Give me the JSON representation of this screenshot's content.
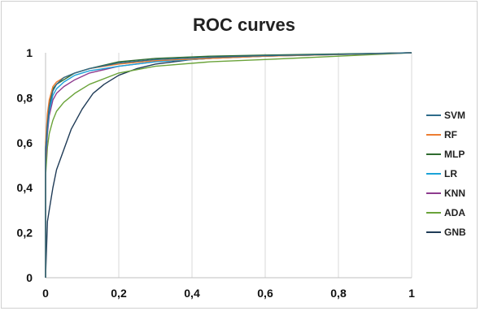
{
  "chart_data": {
    "type": "line",
    "title": "ROC curves",
    "xlabel": "",
    "ylabel": "",
    "xlim": [
      0,
      1
    ],
    "ylim": [
      0,
      1
    ],
    "x_ticks": [
      "0",
      "0,2",
      "0,4",
      "0,6",
      "0,8",
      "1"
    ],
    "y_ticks": [
      "0",
      "0,2",
      "0,4",
      "0,6",
      "0,8",
      "1"
    ],
    "grid": "vertical",
    "legend_position": "right",
    "series": [
      {
        "name": "SVM",
        "color": "#2e6b8a",
        "points": [
          [
            0,
            0
          ],
          [
            0,
            0.57
          ],
          [
            0.005,
            0.68
          ],
          [
            0.01,
            0.76
          ],
          [
            0.02,
            0.83
          ],
          [
            0.03,
            0.86
          ],
          [
            0.05,
            0.89
          ],
          [
            0.08,
            0.91
          ],
          [
            0.12,
            0.93
          ],
          [
            0.2,
            0.955
          ],
          [
            0.3,
            0.97
          ],
          [
            0.45,
            0.98
          ],
          [
            0.6,
            0.987
          ],
          [
            0.8,
            0.993
          ],
          [
            1,
            1
          ]
        ]
      },
      {
        "name": "RF",
        "color": "#ed7d31",
        "points": [
          [
            0,
            0
          ],
          [
            0,
            0.6
          ],
          [
            0.005,
            0.73
          ],
          [
            0.01,
            0.79
          ],
          [
            0.02,
            0.85
          ],
          [
            0.03,
            0.87
          ],
          [
            0.05,
            0.89
          ],
          [
            0.08,
            0.91
          ],
          [
            0.12,
            0.93
          ],
          [
            0.2,
            0.95
          ],
          [
            0.3,
            0.965
          ],
          [
            0.45,
            0.975
          ],
          [
            0.6,
            0.985
          ],
          [
            0.8,
            0.992
          ],
          [
            1,
            1
          ]
        ]
      },
      {
        "name": "MLP",
        "color": "#2f6b2f",
        "points": [
          [
            0,
            0
          ],
          [
            0,
            0.58
          ],
          [
            0.005,
            0.7
          ],
          [
            0.01,
            0.78
          ],
          [
            0.02,
            0.84
          ],
          [
            0.03,
            0.86
          ],
          [
            0.05,
            0.88
          ],
          [
            0.08,
            0.91
          ],
          [
            0.12,
            0.93
          ],
          [
            0.2,
            0.96
          ],
          [
            0.3,
            0.975
          ],
          [
            0.45,
            0.985
          ],
          [
            0.6,
            0.99
          ],
          [
            0.8,
            0.995
          ],
          [
            1,
            1
          ]
        ]
      },
      {
        "name": "LR",
        "color": "#1ba3d8",
        "points": [
          [
            0,
            0
          ],
          [
            0,
            0.55
          ],
          [
            0.005,
            0.66
          ],
          [
            0.01,
            0.74
          ],
          [
            0.02,
            0.81
          ],
          [
            0.03,
            0.84
          ],
          [
            0.05,
            0.87
          ],
          [
            0.08,
            0.9
          ],
          [
            0.12,
            0.92
          ],
          [
            0.2,
            0.94
          ],
          [
            0.3,
            0.96
          ],
          [
            0.45,
            0.975
          ],
          [
            0.6,
            0.985
          ],
          [
            0.8,
            0.992
          ],
          [
            1,
            1
          ]
        ]
      },
      {
        "name": "KNN",
        "color": "#8e3b8e",
        "points": [
          [
            0,
            0
          ],
          [
            0,
            0.5
          ],
          [
            0.005,
            0.64
          ],
          [
            0.01,
            0.72
          ],
          [
            0.02,
            0.79
          ],
          [
            0.03,
            0.82
          ],
          [
            0.05,
            0.85
          ],
          [
            0.08,
            0.88
          ],
          [
            0.12,
            0.91
          ],
          [
            0.2,
            0.94
          ],
          [
            0.3,
            0.96
          ],
          [
            0.45,
            0.975
          ],
          [
            0.6,
            0.985
          ],
          [
            0.8,
            0.992
          ],
          [
            1,
            1
          ]
        ]
      },
      {
        "name": "ADA",
        "color": "#6aa339",
        "points": [
          [
            0,
            0
          ],
          [
            0,
            0.45
          ],
          [
            0.005,
            0.58
          ],
          [
            0.01,
            0.64
          ],
          [
            0.02,
            0.7
          ],
          [
            0.03,
            0.74
          ],
          [
            0.05,
            0.78
          ],
          [
            0.08,
            0.82
          ],
          [
            0.12,
            0.86
          ],
          [
            0.2,
            0.91
          ],
          [
            0.3,
            0.94
          ],
          [
            0.45,
            0.96
          ],
          [
            0.6,
            0.97
          ],
          [
            0.8,
            0.985
          ],
          [
            1,
            1
          ]
        ]
      },
      {
        "name": "GNB",
        "color": "#1f3b57",
        "points": [
          [
            0,
            0
          ],
          [
            0.005,
            0.25
          ],
          [
            0.01,
            0.3
          ],
          [
            0.02,
            0.4
          ],
          [
            0.03,
            0.48
          ],
          [
            0.05,
            0.57
          ],
          [
            0.07,
            0.66
          ],
          [
            0.1,
            0.75
          ],
          [
            0.13,
            0.82
          ],
          [
            0.16,
            0.86
          ],
          [
            0.2,
            0.9
          ],
          [
            0.25,
            0.93
          ],
          [
            0.3,
            0.95
          ],
          [
            0.4,
            0.97
          ],
          [
            0.5,
            0.98
          ],
          [
            0.7,
            0.99
          ],
          [
            1,
            1
          ]
        ]
      }
    ]
  }
}
